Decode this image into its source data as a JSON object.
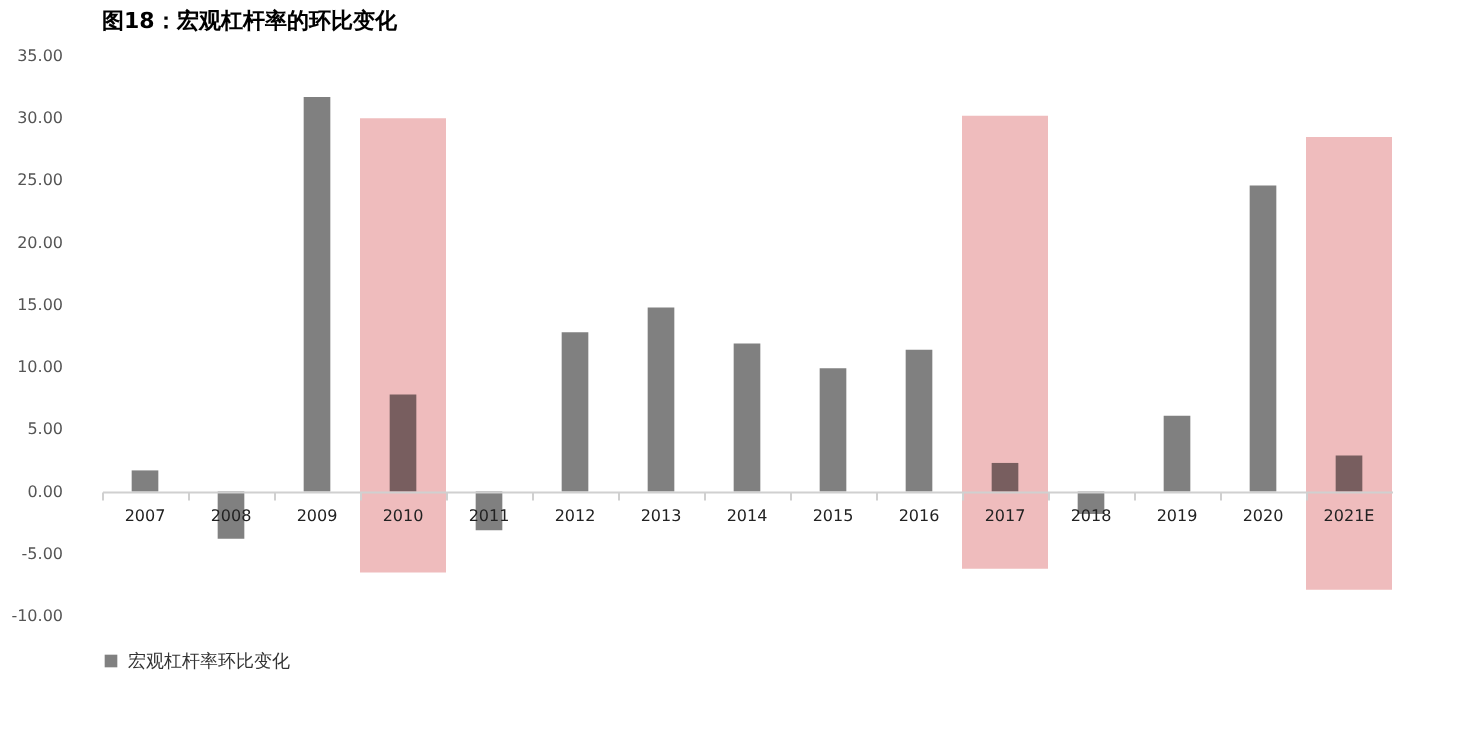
{
  "chart_data": {
    "type": "bar",
    "title": "图18：宏观杠杆率的环比变化",
    "categories": [
      "2007",
      "2008",
      "2009",
      "2010",
      "2011",
      "2012",
      "2013",
      "2014",
      "2015",
      "2016",
      "2017",
      "2018",
      "2019",
      "2020",
      "2021E"
    ],
    "ylim": [
      -10,
      35
    ],
    "yticks": [
      {
        "value": -10,
        "label": "-10.00"
      },
      {
        "value": -5,
        "label": "-5.00"
      },
      {
        "value": 0,
        "label": "0.00"
      },
      {
        "value": 5,
        "label": "5.00"
      },
      {
        "value": 10,
        "label": "10.00"
      },
      {
        "value": 15,
        "label": "15.00"
      },
      {
        "value": 20,
        "label": "20.00"
      },
      {
        "value": 25,
        "label": "25.00"
      },
      {
        "value": 30,
        "label": "30.00"
      },
      {
        "value": 35,
        "label": "35.00"
      }
    ],
    "grid": false,
    "legend": "bottom",
    "series": [
      {
        "name": "宏观杠杆率环比变化",
        "color": "#808080",
        "values": [
          1.7,
          -3.8,
          31.7,
          7.8,
          -3.1,
          12.8,
          14.8,
          11.9,
          9.9,
          11.4,
          2.3,
          -1.8,
          6.1,
          24.6,
          2.9
        ]
      },
      {
        "color": "#efbcbd",
        "base": [
          null,
          null,
          null,
          -6.5,
          null,
          null,
          null,
          null,
          null,
          null,
          -6.2,
          null,
          null,
          null,
          -7.9
        ],
        "values": [
          null,
          null,
          null,
          36.5,
          null,
          null,
          null,
          null,
          null,
          null,
          36.4,
          null,
          null,
          null,
          36.4
        ]
      }
    ]
  }
}
